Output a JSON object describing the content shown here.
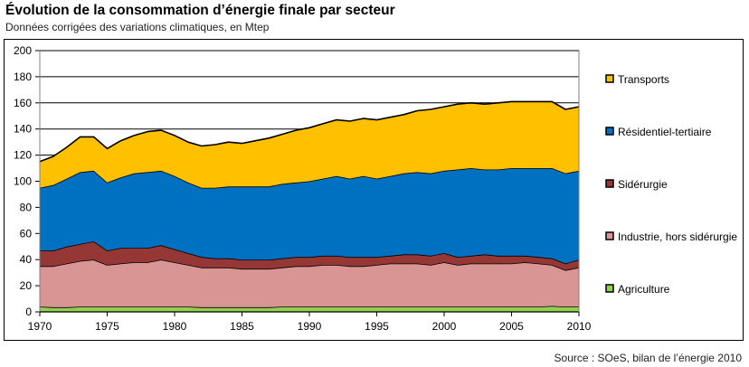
{
  "title": "Évolution de la consommation d’énergie finale par secteur",
  "subtitle": "Données corrigées des variations climatiques, en Mtep",
  "source": "Source : SOeS, bilan de l’énergie 2010",
  "chart_data": {
    "type": "area",
    "stacked": true,
    "title": "Évolution de la consommation d’énergie finale par secteur",
    "subtitle": "Données corrigées des variations climatiques, en Mtep",
    "xlabel": "",
    "ylabel": "",
    "ylim": [
      0,
      200
    ],
    "xlim": [
      1970,
      2010
    ],
    "grid": true,
    "legend_position": "right",
    "y_ticks": [
      0,
      20,
      40,
      60,
      80,
      100,
      120,
      140,
      160,
      180,
      200
    ],
    "x_ticks": [
      1970,
      1975,
      1980,
      1985,
      1990,
      1995,
      2000,
      2005,
      2010
    ],
    "x": [
      1970,
      1971,
      1972,
      1973,
      1974,
      1975,
      1976,
      1977,
      1978,
      1979,
      1980,
      1981,
      1982,
      1983,
      1984,
      1985,
      1986,
      1987,
      1988,
      1989,
      1990,
      1991,
      1992,
      1993,
      1994,
      1995,
      1996,
      1997,
      1998,
      1999,
      2000,
      2001,
      2002,
      2003,
      2004,
      2005,
      2006,
      2007,
      2008,
      2009,
      2010
    ],
    "series": [
      {
        "name": "Agriculture",
        "color": "#92D050",
        "values": [
          4,
          3.5,
          3.5,
          4,
          4,
          4,
          4,
          4,
          4,
          4,
          4,
          4,
          3.5,
          3.5,
          3.5,
          3.5,
          3.5,
          3.5,
          4,
          4,
          4,
          4,
          4,
          4,
          4,
          4,
          4,
          4,
          4,
          4,
          4,
          4,
          4,
          4,
          4,
          4,
          4,
          4,
          4.5,
          4,
          4
        ]
      },
      {
        "name": "Industrie, hors sidérurgie",
        "color": "#D99594",
        "values": [
          31,
          31.5,
          33.5,
          35,
          36,
          32,
          33,
          34,
          34,
          36,
          34,
          32,
          30.5,
          30.5,
          30.5,
          29.5,
          29.5,
          29.5,
          30,
          31,
          31,
          32,
          32,
          31,
          31,
          32,
          33,
          33,
          33,
          32,
          34,
          32,
          33,
          33,
          33,
          33,
          34,
          33,
          31.5,
          28,
          30
        ]
      },
      {
        "name": "Sidérurgie",
        "color": "#953735",
        "values": [
          12,
          12,
          13,
          13,
          14,
          11,
          12,
          11,
          11,
          11,
          10,
          9,
          8,
          7,
          7,
          7,
          7,
          7,
          7,
          7,
          7,
          7,
          7,
          7,
          7,
          6,
          6,
          7,
          7,
          7,
          7,
          6,
          6,
          7,
          6,
          6,
          5,
          5,
          5,
          5,
          6
        ]
      },
      {
        "name": "Résidentiel-tertiaire",
        "color": "#0070C0",
        "values": [
          48,
          50,
          52,
          55,
          54,
          52,
          54,
          57,
          58,
          57,
          56,
          54,
          53,
          54,
          55,
          56,
          56,
          56,
          57,
          57,
          58,
          59,
          61,
          60,
          62,
          60,
          61,
          62,
          63,
          63,
          63,
          67,
          67,
          65,
          66,
          67,
          67,
          68,
          69,
          69,
          68
        ]
      },
      {
        "name": "Transports",
        "color": "#FFC000",
        "values": [
          20,
          22,
          24,
          27,
          26,
          26,
          28,
          29,
          31,
          31,
          31,
          31,
          32,
          33,
          34,
          33,
          35,
          37,
          38,
          40,
          41,
          42,
          43,
          44,
          44,
          45,
          45,
          45,
          47,
          49,
          49,
          50,
          50,
          50,
          51,
          51,
          51,
          51,
          51,
          49,
          49
        ]
      }
    ],
    "legend": [
      "Transports",
      "Résidentiel-tertiaire",
      "Sidérurgie",
      "Industrie, hors sidérurgie",
      "Agriculture"
    ]
  }
}
